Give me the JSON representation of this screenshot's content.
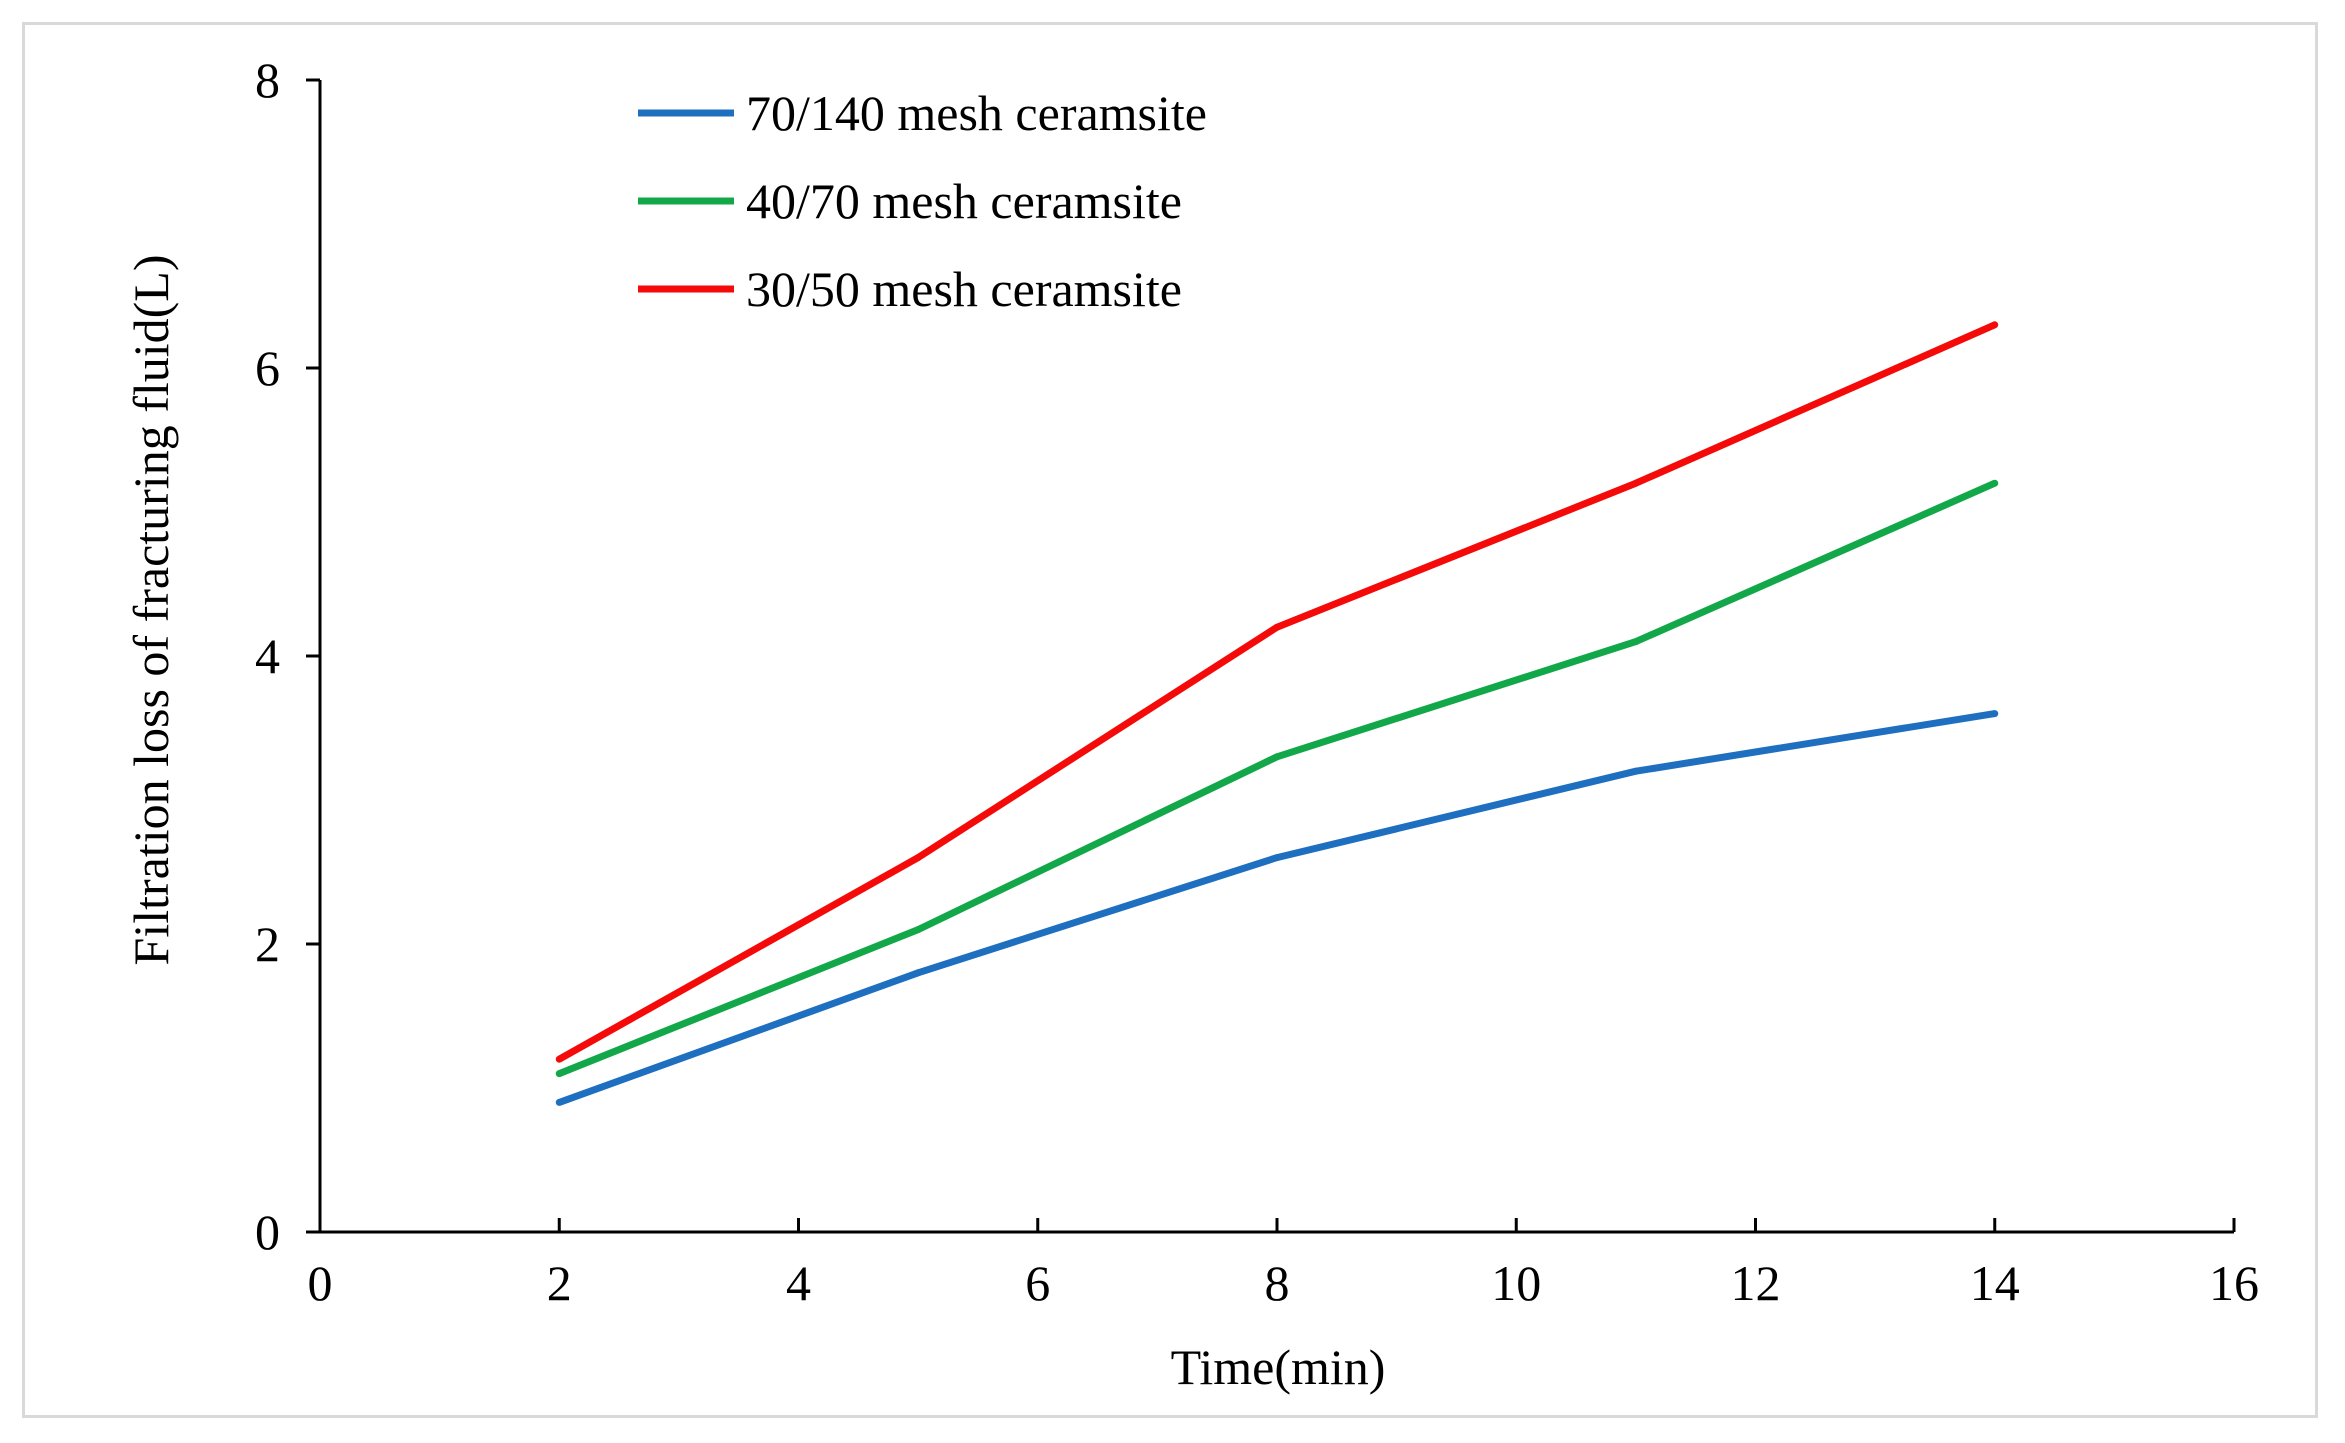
{
  "chart_data": {
    "type": "line",
    "title": "",
    "xlabel": "Time(min)",
    "ylabel": "Filtration  loss of fracturing  fluid(L)",
    "xlim": [
      0,
      16
    ],
    "ylim": [
      0,
      8
    ],
    "xticks": [
      0,
      2,
      4,
      6,
      8,
      10,
      12,
      14,
      16
    ],
    "yticks": [
      0,
      2,
      4,
      6,
      8
    ],
    "grid": false,
    "legend_position": "top-left",
    "x": [
      2,
      5,
      8,
      11,
      14
    ],
    "series": [
      {
        "name": "70/140 mesh ceramsite",
        "color": "#1f6fc0",
        "values": [
          0.9,
          1.8,
          2.6,
          3.2,
          3.6
        ]
      },
      {
        "name": "40/70 mesh ceramsite",
        "color": "#12a84a",
        "values": [
          1.1,
          2.1,
          3.3,
          4.1,
          5.2
        ]
      },
      {
        "name": "30/50 mesh ceramsite",
        "color": "#f50a0a",
        "values": [
          1.2,
          2.6,
          4.2,
          5.2,
          6.3
        ]
      }
    ]
  }
}
